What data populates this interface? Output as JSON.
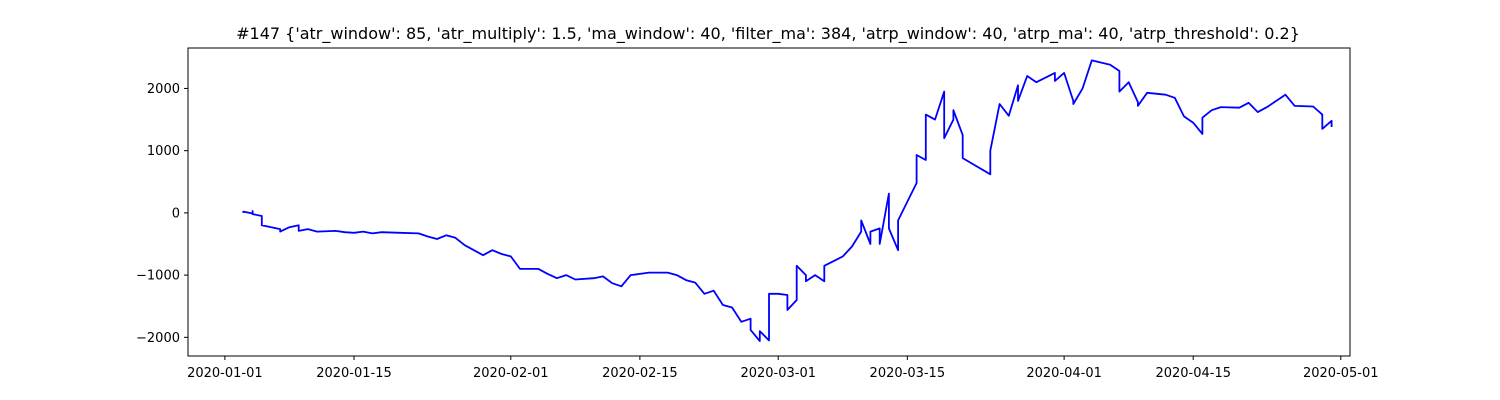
{
  "chart_data": {
    "type": "line",
    "title": "#147 {'atr_window': 85, 'atr_multiply': 1.5, 'ma_window': 40, 'filter_ma': 384, 'atrp_window': 40, 'atrp_ma': 40, 'atrp_threshold': 0.2}",
    "xlabel": "",
    "ylabel": "",
    "x_type": "date",
    "xlim": [
      "2019-12-28",
      "2020-05-02"
    ],
    "ylim": [
      -2300,
      2650
    ],
    "x_ticks": [
      "2020-01-01",
      "2020-01-15",
      "2020-02-01",
      "2020-02-15",
      "2020-03-01",
      "2020-03-15",
      "2020-04-01",
      "2020-04-15",
      "2020-05-01"
    ],
    "y_ticks": [
      -2000,
      -1000,
      0,
      1000,
      2000
    ],
    "grid": false,
    "legend": "none",
    "colors": {
      "line": "#0000ff"
    },
    "series": [
      {
        "points": [
          [
            "2020-01-03",
            0
          ],
          [
            "2020-01-03",
            20
          ],
          [
            "2020-01-04",
            -10
          ],
          [
            "2020-01-04",
            30
          ],
          [
            "2020-01-04",
            -20
          ],
          [
            "2020-01-05",
            -50
          ],
          [
            "2020-01-05",
            -200
          ],
          [
            "2020-01-07",
            -260
          ],
          [
            "2020-01-07",
            -300
          ],
          [
            "2020-01-08",
            -230
          ],
          [
            "2020-01-09",
            -200
          ],
          [
            "2020-01-09",
            -290
          ],
          [
            "2020-01-10",
            -260
          ],
          [
            "2020-01-11",
            -300
          ],
          [
            "2020-01-13",
            -290
          ],
          [
            "2020-01-14",
            -310
          ],
          [
            "2020-01-15",
            -320
          ],
          [
            "2020-01-16",
            -300
          ],
          [
            "2020-01-17",
            -330
          ],
          [
            "2020-01-18",
            -310
          ],
          [
            "2020-01-20",
            -320
          ],
          [
            "2020-01-22",
            -330
          ],
          [
            "2020-01-23",
            -380
          ],
          [
            "2020-01-24",
            -420
          ],
          [
            "2020-01-25",
            -360
          ],
          [
            "2020-01-26",
            -400
          ],
          [
            "2020-01-27",
            -520
          ],
          [
            "2020-01-28",
            -600
          ],
          [
            "2020-01-29",
            -680
          ],
          [
            "2020-01-30",
            -600
          ],
          [
            "2020-01-31",
            -660
          ],
          [
            "2020-02-01",
            -700
          ],
          [
            "2020-02-02",
            -900
          ],
          [
            "2020-02-04",
            -900
          ],
          [
            "2020-02-05",
            -980
          ],
          [
            "2020-02-06",
            -1050
          ],
          [
            "2020-02-07",
            -1000
          ],
          [
            "2020-02-08",
            -1070
          ],
          [
            "2020-02-10",
            -1050
          ],
          [
            "2020-02-11",
            -1020
          ],
          [
            "2020-02-12",
            -1130
          ],
          [
            "2020-02-13",
            -1180
          ],
          [
            "2020-02-14",
            -1000
          ],
          [
            "2020-02-15",
            -980
          ],
          [
            "2020-02-16",
            -960
          ],
          [
            "2020-02-18",
            -960
          ],
          [
            "2020-02-19",
            -1000
          ],
          [
            "2020-02-20",
            -1080
          ],
          [
            "2020-02-21",
            -1120
          ],
          [
            "2020-02-22",
            -1300
          ],
          [
            "2020-02-23",
            -1250
          ],
          [
            "2020-02-24",
            -1480
          ],
          [
            "2020-02-25",
            -1520
          ],
          [
            "2020-02-26",
            -1750
          ],
          [
            "2020-02-27",
            -1700
          ],
          [
            "2020-02-27",
            -1880
          ],
          [
            "2020-02-28",
            -2060
          ],
          [
            "2020-02-28",
            -1900
          ],
          [
            "2020-02-29",
            -2050
          ],
          [
            "2020-02-29",
            -1300
          ],
          [
            "2020-03-01",
            -1300
          ],
          [
            "2020-03-02",
            -1320
          ],
          [
            "2020-03-02",
            -1560
          ],
          [
            "2020-03-03",
            -1400
          ],
          [
            "2020-03-03",
            -850
          ],
          [
            "2020-03-04",
            -1000
          ],
          [
            "2020-03-04",
            -1100
          ],
          [
            "2020-03-05",
            -1000
          ],
          [
            "2020-03-06",
            -1100
          ],
          [
            "2020-03-06",
            -850
          ],
          [
            "2020-03-08",
            -700
          ],
          [
            "2020-03-09",
            -540
          ],
          [
            "2020-03-10",
            -300
          ],
          [
            "2020-03-10",
            -120
          ],
          [
            "2020-03-11",
            -500
          ],
          [
            "2020-03-11",
            -300
          ],
          [
            "2020-03-12",
            -250
          ],
          [
            "2020-03-12",
            -500
          ],
          [
            "2020-03-13",
            310
          ],
          [
            "2020-03-13",
            -250
          ],
          [
            "2020-03-14",
            -600
          ],
          [
            "2020-03-14",
            -120
          ],
          [
            "2020-03-16",
            480
          ],
          [
            "2020-03-16",
            930
          ],
          [
            "2020-03-17",
            850
          ],
          [
            "2020-03-17",
            1580
          ],
          [
            "2020-03-18",
            1500
          ],
          [
            "2020-03-19",
            1950
          ],
          [
            "2020-03-19",
            1200
          ],
          [
            "2020-03-20",
            1500
          ],
          [
            "2020-03-20",
            1650
          ],
          [
            "2020-03-21",
            1250
          ],
          [
            "2020-03-21",
            880
          ],
          [
            "2020-03-24",
            620
          ],
          [
            "2020-03-24",
            1000
          ],
          [
            "2020-03-25",
            1750
          ],
          [
            "2020-03-26",
            1560
          ],
          [
            "2020-03-27",
            2050
          ],
          [
            "2020-03-27",
            1800
          ],
          [
            "2020-03-28",
            2200
          ],
          [
            "2020-03-29",
            2100
          ],
          [
            "2020-03-31",
            2250
          ],
          [
            "2020-03-31",
            2120
          ],
          [
            "2020-04-01",
            2250
          ],
          [
            "2020-04-02",
            1800
          ],
          [
            "2020-04-02",
            1750
          ],
          [
            "2020-04-03",
            2000
          ],
          [
            "2020-04-04",
            2450
          ],
          [
            "2020-04-06",
            2380
          ],
          [
            "2020-04-07",
            2280
          ],
          [
            "2020-04-07",
            1950
          ],
          [
            "2020-04-08",
            2100
          ],
          [
            "2020-04-09",
            1780
          ],
          [
            "2020-04-09",
            1720
          ],
          [
            "2020-04-10",
            1930
          ],
          [
            "2020-04-12",
            1900
          ],
          [
            "2020-04-13",
            1850
          ],
          [
            "2020-04-14",
            1550
          ],
          [
            "2020-04-15",
            1450
          ],
          [
            "2020-04-16",
            1270
          ],
          [
            "2020-04-16",
            1530
          ],
          [
            "2020-04-17",
            1650
          ],
          [
            "2020-04-18",
            1700
          ],
          [
            "2020-04-20",
            1690
          ],
          [
            "2020-04-21",
            1770
          ],
          [
            "2020-04-22",
            1620
          ],
          [
            "2020-04-23",
            1700
          ],
          [
            "2020-04-25",
            1900
          ],
          [
            "2020-04-26",
            1720
          ],
          [
            "2020-04-28",
            1710
          ],
          [
            "2020-04-29",
            1580
          ],
          [
            "2020-04-29",
            1350
          ],
          [
            "2020-04-30",
            1480
          ],
          [
            "2020-04-30",
            1380
          ]
        ]
      }
    ]
  }
}
